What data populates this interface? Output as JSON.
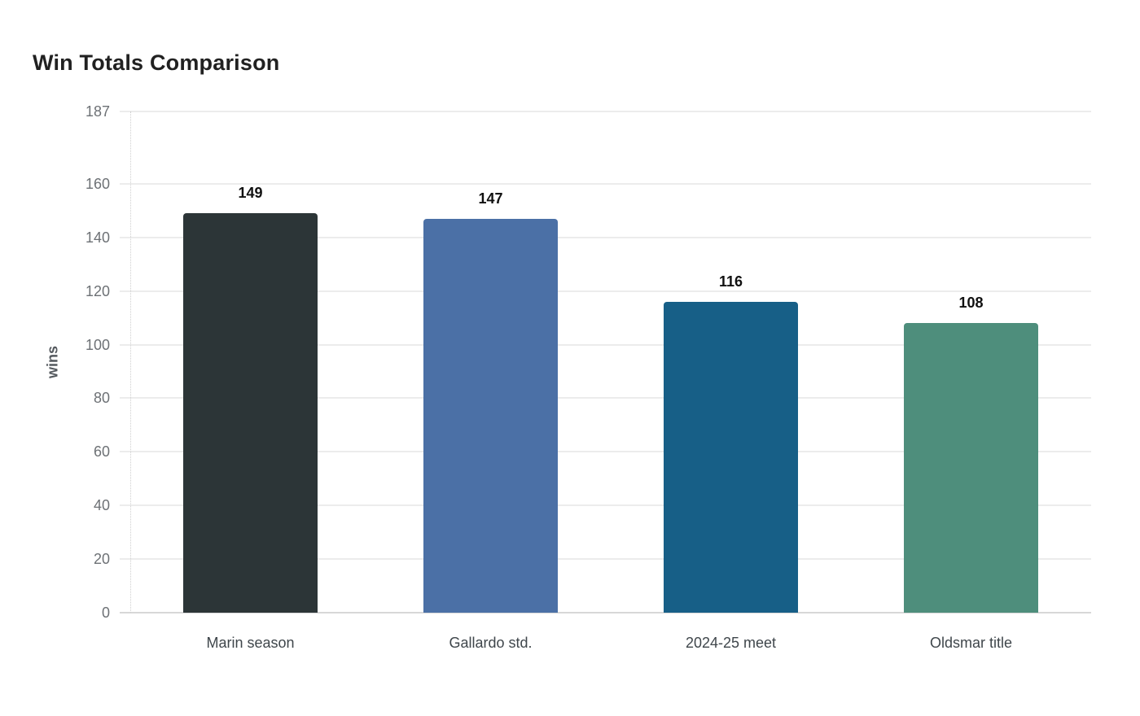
{
  "page": {
    "background_color": "#ffffff"
  },
  "chart_data": {
    "type": "bar",
    "title": "Win Totals Comparison",
    "xlabel": "",
    "ylabel": "wins",
    "categories": [
      "Marin season",
      "Gallardo std.",
      "2024-25 meet",
      "Oldsmar title"
    ],
    "values": [
      149,
      147,
      116,
      108
    ],
    "value_labels": [
      "149",
      "147",
      "116",
      "108"
    ],
    "bar_colors": [
      "#2c3537",
      "#4b70a6",
      "#175f87",
      "#4e8e7c"
    ],
    "ylim": [
      0,
      187
    ],
    "yticks": [
      0,
      20,
      40,
      60,
      80,
      100,
      120,
      140,
      160,
      187
    ],
    "grid": true,
    "legend": false,
    "style": {
      "grid_color": "#ececec",
      "baseline_color": "#d7d7d7",
      "axis_line_color": "#cfcfcf",
      "tick_label_color": "#6d7175",
      "category_label_color": "#3f464b",
      "value_label_color": "#111111",
      "title_color": "#212121",
      "ylabel_color": "#54595e"
    }
  }
}
